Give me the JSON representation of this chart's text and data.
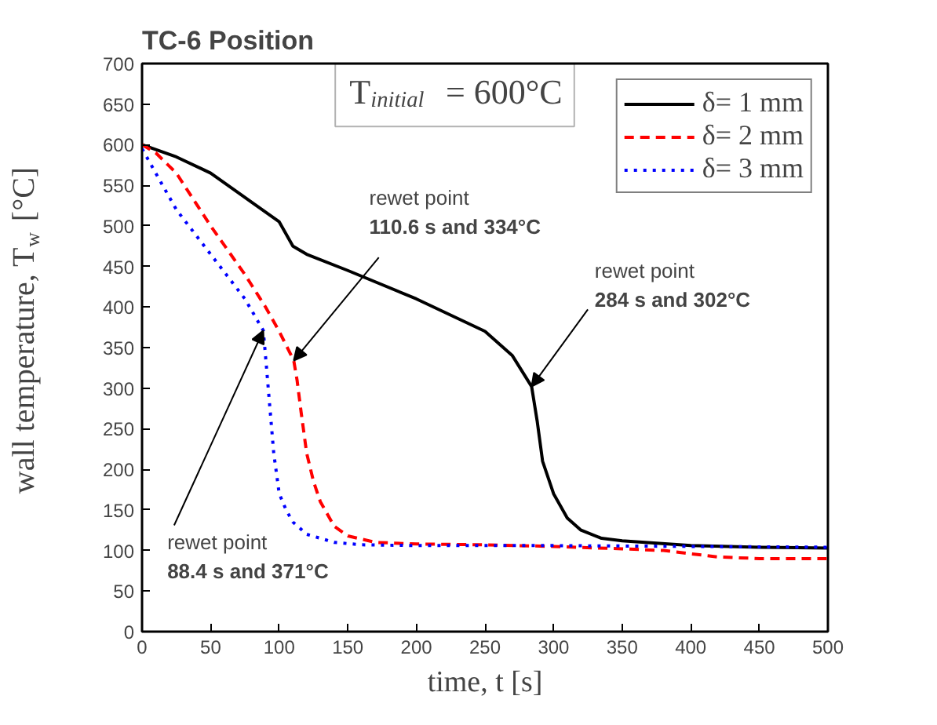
{
  "chart_data": {
    "type": "line",
    "title": "TC-6 Position",
    "xlabel": "time, t [s]",
    "ylabel": "wall temperature, T$_{w}$ [°C]",
    "xlim": [
      0,
      500
    ],
    "ylim": [
      0,
      700
    ],
    "xticks": [
      0,
      50,
      100,
      150,
      200,
      250,
      300,
      350,
      400,
      450,
      500
    ],
    "yticks": [
      0,
      50,
      100,
      150,
      200,
      250,
      300,
      350,
      400,
      450,
      500,
      550,
      600,
      650,
      700
    ],
    "grid": false,
    "legend": "top right",
    "annotations": [
      "T$_{initial}$ = 600°C",
      {
        "text": "rewet point\n110.6 s and 334°C",
        "x": 110.6,
        "y": 334
      },
      {
        "text": "rewet point\n284 s and 302°C",
        "x": 284,
        "y": 302
      },
      {
        "text": "rewet point\n88.4 s and  371°C",
        "x": 88.4,
        "y": 371
      }
    ],
    "series": [
      {
        "name": "δ= 1 mm",
        "color": "#000000",
        "line_style": "solid",
        "x": [
          0,
          25,
          50,
          75,
          100,
          110,
          120,
          150,
          200,
          250,
          270,
          284,
          288,
          292,
          300,
          310,
          320,
          335,
          350,
          400,
          450,
          500
        ],
        "values": [
          600,
          585,
          565,
          535,
          505,
          475,
          465,
          445,
          410,
          370,
          340,
          302,
          260,
          210,
          170,
          140,
          125,
          115,
          112,
          106,
          104,
          103
        ]
      },
      {
        "name": "δ= 2 mm",
        "color": "#ff0000",
        "line_style": "dashed",
        "x": [
          0,
          10,
          25,
          50,
          75,
          90,
          100,
          110.6,
          113,
          116,
          120,
          125,
          130,
          140,
          150,
          170,
          200,
          250,
          300,
          350,
          380,
          400,
          420,
          450,
          500
        ],
        "values": [
          600,
          590,
          565,
          500,
          440,
          400,
          370,
          334,
          310,
          270,
          220,
          185,
          160,
          130,
          118,
          110,
          108,
          107,
          105,
          102,
          100,
          96,
          92,
          90,
          90
        ]
      },
      {
        "name": "δ= 3 mm",
        "color": "#0000ff",
        "line_style": "dotted",
        "x": [
          0,
          10,
          25,
          50,
          75,
          88.4,
          90,
          92,
          94,
          96,
          100,
          105,
          110,
          120,
          140,
          160,
          200,
          250,
          300,
          400,
          500
        ],
        "values": [
          595,
          565,
          520,
          465,
          410,
          371,
          340,
          300,
          260,
          220,
          170,
          150,
          135,
          120,
          110,
          107,
          106,
          106,
          106,
          105,
          104
        ]
      }
    ]
  }
}
